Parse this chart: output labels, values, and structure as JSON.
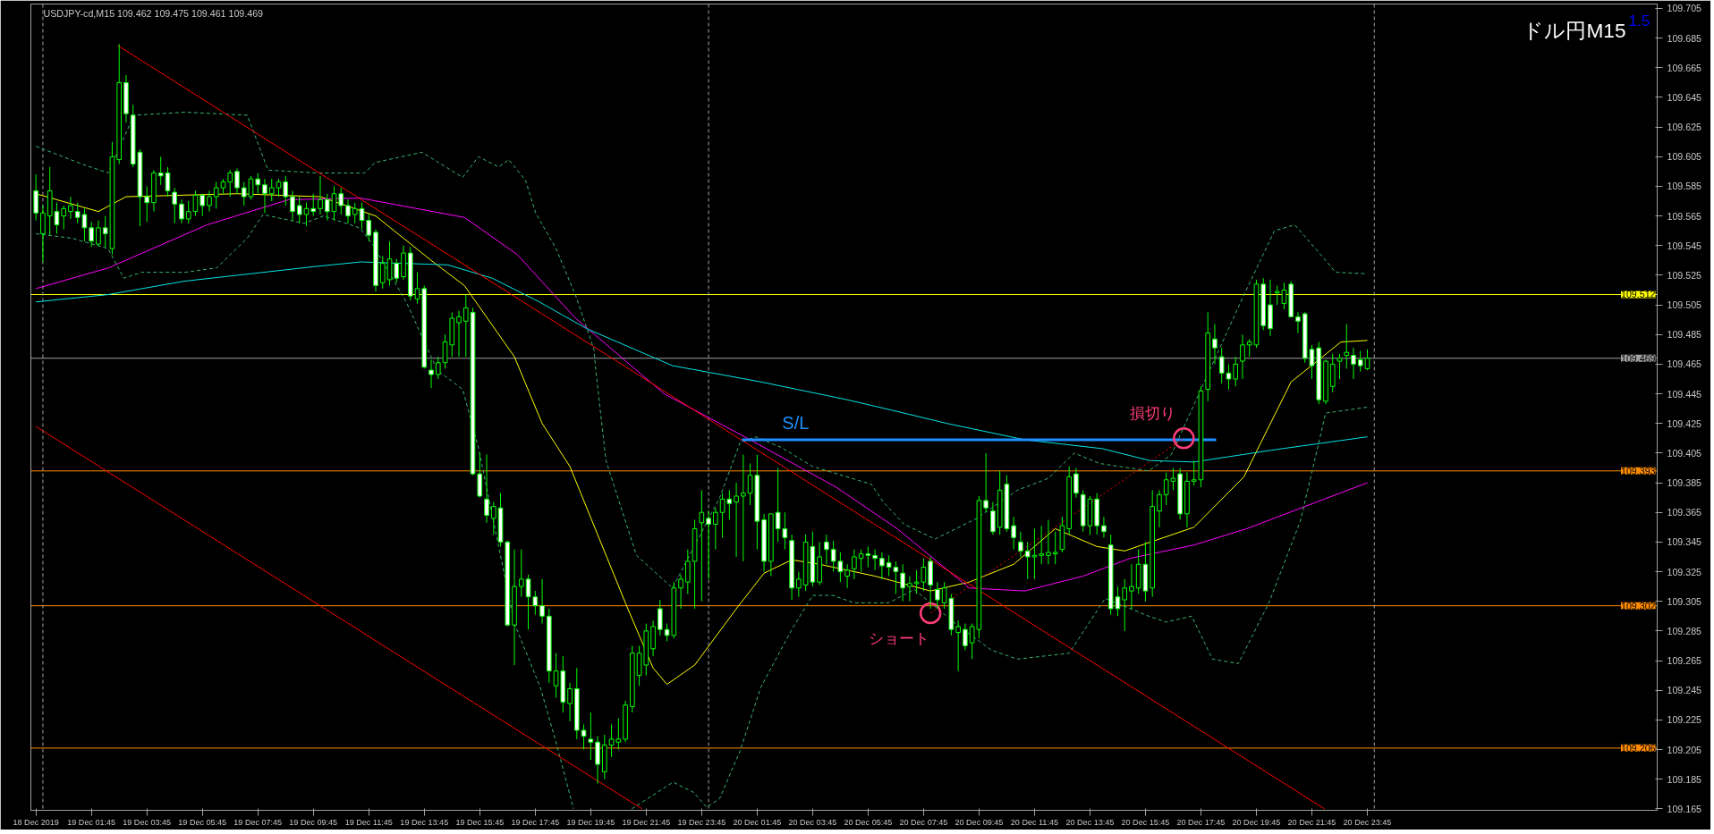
{
  "chart_data": {
    "type": "candlestick",
    "title": "ドル円M15",
    "subtitle": "USDJPY-cd,M15  109.462 109.475 109.461 109.469",
    "annotations": [
      "1.5",
      {
        "text": "損切り",
        "x": "2019-12-20T17:08",
        "y": 109.415
      },
      {
        "text": "ショート",
        "x": "2019-12-20T08:00",
        "y": 109.297
      }
    ],
    "xlim": [
      "2019-12-18T23:34",
      "2019-12-21T10:12"
    ],
    "ylim": [
      109.164,
      109.708
    ],
    "xticks": [
      {
        "value": "2019-12-18T23:45",
        "label": "18 Dec 2019"
      },
      {
        "value": "2019-12-19T01:45",
        "label": "19 Dec 01:45"
      },
      {
        "value": "2019-12-19T03:45",
        "label": "19 Dec 03:45"
      },
      {
        "value": "2019-12-19T05:45",
        "label": "19 Dec 05:45"
      },
      {
        "value": "2019-12-19T07:45",
        "label": "19 Dec 07:45"
      },
      {
        "value": "2019-12-19T09:45",
        "label": "19 Dec 09:45"
      },
      {
        "value": "2019-12-19T11:45",
        "label": "19 Dec 11:45"
      },
      {
        "value": "2019-12-19T13:45",
        "label": "19 Dec 13:45"
      },
      {
        "value": "2019-12-19T15:45",
        "label": "19 Dec 15:45"
      },
      {
        "value": "2019-12-19T17:45",
        "label": "19 Dec 17:45"
      },
      {
        "value": "2019-12-19T19:45",
        "label": "19 Dec 19:45"
      },
      {
        "value": "2019-12-19T21:45",
        "label": "19 Dec 21:45"
      },
      {
        "value": "2019-12-19T23:45",
        "label": "19 Dec 23:45"
      },
      {
        "value": "2019-12-20T01:45",
        "label": "20 Dec 01:45"
      },
      {
        "value": "2019-12-20T03:45",
        "label": "20 Dec 03:45"
      },
      {
        "value": "2019-12-20T05:45",
        "label": "20 Dec 05:45"
      },
      {
        "value": "2019-12-20T07:45",
        "label": "20 Dec 07:45"
      },
      {
        "value": "2019-12-20T09:45",
        "label": "20 Dec 09:45"
      },
      {
        "value": "2019-12-20T11:45",
        "label": "20 Dec 11:45"
      },
      {
        "value": "2019-12-20T13:45",
        "label": "20 Dec 13:45"
      },
      {
        "value": "2019-12-20T15:45",
        "label": "20 Dec 15:45"
      },
      {
        "value": "2019-12-20T17:45",
        "label": "20 Dec 17:45"
      },
      {
        "value": "2019-12-20T19:45",
        "label": "20 Dec 19:45"
      },
      {
        "value": "2019-12-20T21:45",
        "label": "20 Dec 21:45"
      },
      {
        "value": "2019-12-20T23:45",
        "label": "20 Dec 23:45"
      }
    ],
    "yticks": [
      109.165,
      109.185,
      109.205,
      109.225,
      109.245,
      109.265,
      109.285,
      109.305,
      109.325,
      109.345,
      109.365,
      109.385,
      109.405,
      109.425,
      109.445,
      109.465,
      109.485,
      109.505,
      109.525,
      109.545,
      109.565,
      109.585,
      109.605,
      109.625,
      109.645,
      109.665,
      109.685,
      109.705
    ],
    "ref_lines": [
      {
        "axis": "y",
        "value": 109.512,
        "label": "109.512",
        "color": "#ffff00"
      },
      {
        "axis": "y",
        "value": 109.469,
        "label": "109.469",
        "color": "#a0a0a0"
      },
      {
        "axis": "y",
        "value": 109.393,
        "label": "109.393",
        "color": "#ff8c00"
      },
      {
        "axis": "y",
        "value": 109.302,
        "label": "109.302",
        "color": "#ff8c00"
      },
      {
        "axis": "y",
        "value": 109.206,
        "label": "109.206",
        "color": "#ff8c00"
      },
      {
        "axis": "x",
        "value": "2019-12-19T00:00",
        "color": "#a0a0a0",
        "line_style": "dashed"
      },
      {
        "axis": "x",
        "value": "2019-12-20T00:00",
        "color": "#a0a0a0",
        "line_style": "dashed"
      },
      {
        "axis": "x",
        "value": "2019-12-21T00:00",
        "color": "#a0a0a0",
        "line_style": "dashed"
      }
    ],
    "x": [
      "2019-12-18T23:45",
      "2019-12-19T00:00",
      "2019-12-19T00:15",
      "2019-12-19T00:30",
      "2019-12-19T00:45",
      "2019-12-19T01:00",
      "2019-12-19T01:15",
      "2019-12-19T01:30",
      "2019-12-19T01:45",
      "2019-12-19T02:00",
      "2019-12-19T02:15",
      "2019-12-19T02:30",
      "2019-12-19T02:45",
      "2019-12-19T03:00",
      "2019-12-19T03:15",
      "2019-12-19T03:30",
      "2019-12-19T03:45",
      "2019-12-19T04:00",
      "2019-12-19T04:15",
      "2019-12-19T04:30",
      "2019-12-19T04:45",
      "2019-12-19T05:00",
      "2019-12-19T05:15",
      "2019-12-19T05:30",
      "2019-12-19T05:45",
      "2019-12-19T06:00",
      "2019-12-19T06:15",
      "2019-12-19T06:30",
      "2019-12-19T06:45",
      "2019-12-19T07:00",
      "2019-12-19T07:15",
      "2019-12-19T07:30",
      "2019-12-19T07:45",
      "2019-12-19T08:00",
      "2019-12-19T08:15",
      "2019-12-19T08:30",
      "2019-12-19T08:45",
      "2019-12-19T09:00",
      "2019-12-19T09:15",
      "2019-12-19T09:30",
      "2019-12-19T09:45",
      "2019-12-19T10:00",
      "2019-12-19T10:15",
      "2019-12-19T10:30",
      "2019-12-19T10:45",
      "2019-12-19T11:00",
      "2019-12-19T11:15",
      "2019-12-19T11:30",
      "2019-12-19T11:45",
      "2019-12-19T12:00",
      "2019-12-19T12:15",
      "2019-12-19T12:30",
      "2019-12-19T12:45",
      "2019-12-19T13:00",
      "2019-12-19T13:15",
      "2019-12-19T13:30",
      "2019-12-19T13:45",
      "2019-12-19T14:00",
      "2019-12-19T14:15",
      "2019-12-19T14:30",
      "2019-12-19T14:45",
      "2019-12-19T15:00",
      "2019-12-19T15:15",
      "2019-12-19T15:30",
      "2019-12-19T15:45",
      "2019-12-19T16:00",
      "2019-12-19T16:15",
      "2019-12-19T16:30",
      "2019-12-19T16:45",
      "2019-12-19T17:00",
      "2019-12-19T17:15",
      "2019-12-19T17:30",
      "2019-12-19T17:45",
      "2019-12-19T18:00",
      "2019-12-19T18:15",
      "2019-12-19T18:30",
      "2019-12-19T18:45",
      "2019-12-19T19:00",
      "2019-12-19T19:15",
      "2019-12-19T19:30",
      "2019-12-19T19:45",
      "2019-12-19T20:00",
      "2019-12-19T20:15",
      "2019-12-19T20:30",
      "2019-12-19T20:45",
      "2019-12-19T21:00",
      "2019-12-19T21:15",
      "2019-12-19T21:30",
      "2019-12-19T21:45",
      "2019-12-19T22:00",
      "2019-12-19T22:15",
      "2019-12-19T22:30",
      "2019-12-19T22:45",
      "2019-12-19T23:00",
      "2019-12-19T23:15",
      "2019-12-19T23:30",
      "2019-12-19T23:45",
      "2019-12-20T00:00",
      "2019-12-20T00:15",
      "2019-12-20T00:30",
      "2019-12-20T00:45",
      "2019-12-20T01:00",
      "2019-12-20T01:15",
      "2019-12-20T01:30",
      "2019-12-20T01:45",
      "2019-12-20T02:00",
      "2019-12-20T02:15",
      "2019-12-20T02:30",
      "2019-12-20T02:45",
      "2019-12-20T03:00",
      "2019-12-20T03:15",
      "2019-12-20T03:30",
      "2019-12-20T03:45",
      "2019-12-20T04:00",
      "2019-12-20T04:15",
      "2019-12-20T04:30",
      "2019-12-20T04:45",
      "2019-12-20T05:00",
      "2019-12-20T05:15",
      "2019-12-20T05:30",
      "2019-12-20T05:45",
      "2019-12-20T06:00",
      "2019-12-20T06:15",
      "2019-12-20T06:30",
      "2019-12-20T06:45",
      "2019-12-20T07:00",
      "2019-12-20T07:15",
      "2019-12-20T07:30",
      "2019-12-20T07:45",
      "2019-12-20T08:00",
      "2019-12-20T08:15",
      "2019-12-20T08:30",
      "2019-12-20T08:45",
      "2019-12-20T09:00",
      "2019-12-20T09:15",
      "2019-12-20T09:30",
      "2019-12-20T09:45",
      "2019-12-20T10:00",
      "2019-12-20T10:15",
      "2019-12-20T10:30",
      "2019-12-20T10:45",
      "2019-12-20T11:00",
      "2019-12-20T11:15",
      "2019-12-20T11:30",
      "2019-12-20T11:45",
      "2019-12-20T12:00",
      "2019-12-20T12:15",
      "2019-12-20T12:30",
      "2019-12-20T12:45",
      "2019-12-20T13:00",
      "2019-12-20T13:15",
      "2019-12-20T13:30",
      "2019-12-20T13:45",
      "2019-12-20T14:00",
      "2019-12-20T14:15",
      "2019-12-20T14:30",
      "2019-12-20T14:45",
      "2019-12-20T15:00",
      "2019-12-20T15:15",
      "2019-12-20T15:30",
      "2019-12-20T15:45",
      "2019-12-20T16:00",
      "2019-12-20T16:15",
      "2019-12-20T16:30",
      "2019-12-20T16:45",
      "2019-12-20T17:00",
      "2019-12-20T17:15",
      "2019-12-20T17:30",
      "2019-12-20T17:45",
      "2019-12-20T18:00",
      "2019-12-20T18:15",
      "2019-12-20T18:30",
      "2019-12-20T18:45",
      "2019-12-20T19:00",
      "2019-12-20T19:15",
      "2019-12-20T19:30",
      "2019-12-20T19:45",
      "2019-12-20T20:00",
      "2019-12-20T20:15",
      "2019-12-20T20:30",
      "2019-12-20T20:45",
      "2019-12-20T21:00",
      "2019-12-20T21:15",
      "2019-12-20T21:30",
      "2019-12-20T21:45",
      "2019-12-20T22:00",
      "2019-12-20T22:15",
      "2019-12-20T22:30",
      "2019-12-20T22:45",
      "2019-12-20T23:00",
      "2019-12-20T23:15",
      "2019-12-20T23:30",
      "2019-12-20T23:45"
    ],
    "ohlc": [
      [
        109.582,
        109.593,
        109.562,
        109.567
      ],
      [
        109.553,
        109.572,
        109.534,
        109.567
      ],
      [
        109.565,
        109.598,
        109.552,
        109.582
      ],
      [
        109.568,
        109.574,
        109.553,
        109.559
      ],
      [
        109.565,
        109.572,
        109.556,
        109.57
      ],
      [
        109.568,
        109.578,
        109.563,
        109.572
      ],
      [
        109.568,
        109.574,
        109.56,
        109.564
      ],
      [
        109.566,
        109.57,
        109.548,
        109.557
      ],
      [
        109.557,
        109.561,
        109.544,
        109.548
      ],
      [
        109.546,
        109.562,
        109.545,
        109.557
      ],
      [
        109.557,
        109.565,
        109.544,
        109.553
      ],
      [
        109.543,
        109.615,
        109.539,
        109.605
      ],
      [
        109.603,
        109.681,
        109.6,
        109.655
      ],
      [
        109.655,
        109.66,
        109.628,
        109.634
      ],
      [
        109.633,
        109.64,
        109.598,
        109.6
      ],
      [
        109.608,
        109.61,
        109.558,
        109.578
      ],
      [
        109.578,
        109.585,
        109.561,
        109.574
      ],
      [
        109.574,
        109.596,
        109.568,
        109.594
      ],
      [
        109.594,
        109.605,
        109.586,
        109.592
      ],
      [
        109.594,
        109.598,
        109.578,
        109.582
      ],
      [
        109.581,
        109.584,
        109.56,
        109.573
      ],
      [
        109.573,
        109.576,
        109.56,
        109.563
      ],
      [
        109.563,
        109.575,
        109.56,
        109.568
      ],
      [
        109.568,
        109.582,
        109.565,
        109.579
      ],
      [
        109.579,
        109.58,
        109.565,
        109.572
      ],
      [
        109.572,
        109.582,
        109.568,
        109.578
      ],
      [
        109.578,
        109.588,
        109.57,
        109.584
      ],
      [
        109.584,
        109.59,
        109.58,
        109.588
      ],
      [
        109.588,
        109.596,
        109.578,
        109.594
      ],
      [
        109.595,
        109.597,
        109.58,
        109.584
      ],
      [
        109.584,
        109.588,
        109.572,
        109.578
      ],
      [
        109.578,
        109.592,
        109.576,
        109.59
      ],
      [
        109.59,
        109.594,
        109.58,
        109.586
      ],
      [
        109.586,
        109.59,
        109.567,
        109.58
      ],
      [
        109.58,
        109.59,
        109.575,
        109.584
      ],
      [
        109.584,
        109.59,
        109.578,
        109.588
      ],
      [
        109.588,
        109.592,
        109.572,
        109.578
      ],
      [
        109.578,
        109.582,
        109.562,
        109.568
      ],
      [
        109.572,
        109.578,
        109.56,
        109.566
      ],
      [
        109.566,
        109.574,
        109.558,
        109.57
      ],
      [
        109.57,
        109.58,
        109.565,
        109.568
      ],
      [
        109.57,
        109.592,
        109.566,
        109.576
      ],
      [
        109.576,
        109.58,
        109.562,
        109.568
      ],
      [
        109.568,
        109.585,
        109.562,
        109.58
      ],
      [
        109.58,
        109.584,
        109.566,
        109.572
      ],
      [
        109.572,
        109.576,
        109.56,
        109.565
      ],
      [
        109.566,
        109.574,
        109.56,
        109.57
      ],
      [
        109.57,
        109.574,
        109.556,
        109.562
      ],
      [
        109.562,
        109.566,
        109.548,
        109.552
      ],
      [
        109.554,
        109.556,
        109.514,
        109.518
      ],
      [
        109.52,
        109.538,
        109.516,
        109.533
      ],
      [
        109.522,
        109.548,
        109.518,
        109.536
      ],
      [
        109.533,
        109.536,
        109.52,
        109.523
      ],
      [
        109.524,
        109.545,
        109.522,
        109.54
      ],
      [
        109.54,
        109.544,
        109.508,
        109.511
      ],
      [
        109.509,
        109.527,
        109.506,
        109.516
      ],
      [
        109.516,
        109.518,
        109.462,
        109.463
      ],
      [
        109.461,
        109.468,
        109.449,
        109.458
      ],
      [
        109.458,
        109.47,
        109.455,
        109.466
      ],
      [
        109.466,
        109.485,
        109.462,
        109.48
      ],
      [
        109.478,
        109.5,
        109.47,
        109.496
      ],
      [
        109.493,
        109.501,
        109.47,
        109.497
      ],
      [
        109.494,
        109.512,
        109.47,
        109.503
      ],
      [
        109.5,
        109.503,
        109.39,
        109.391
      ],
      [
        109.391,
        109.405,
        109.375,
        109.376
      ],
      [
        109.374,
        109.404,
        109.358,
        109.363
      ],
      [
        109.361,
        109.372,
        109.35,
        109.369
      ],
      [
        109.368,
        109.378,
        109.342,
        109.345
      ],
      [
        109.345,
        109.346,
        109.288,
        109.289
      ],
      [
        109.289,
        109.34,
        109.262,
        109.315
      ],
      [
        109.315,
        109.34,
        109.308,
        109.32
      ],
      [
        109.32,
        109.323,
        109.286,
        109.308
      ],
      [
        109.308,
        109.312,
        109.296,
        109.302
      ],
      [
        109.302,
        109.32,
        109.29,
        109.295
      ],
      [
        109.295,
        109.3,
        109.25,
        109.258
      ],
      [
        109.248,
        109.27,
        109.24,
        109.258
      ],
      [
        109.258,
        109.268,
        109.23,
        109.237
      ],
      [
        109.236,
        109.25,
        109.224,
        109.246
      ],
      [
        109.246,
        109.26,
        109.212,
        109.218
      ],
      [
        109.218,
        109.222,
        109.205,
        109.214
      ],
      [
        109.212,
        109.23,
        109.198,
        109.21
      ],
      [
        109.21,
        109.214,
        109.182,
        109.195
      ],
      [
        109.19,
        109.215,
        109.185,
        109.208
      ],
      [
        109.208,
        109.222,
        109.2,
        109.212
      ],
      [
        109.21,
        109.226,
        109.205,
        109.212
      ],
      [
        109.212,
        109.238,
        109.21,
        109.235
      ],
      [
        109.234,
        109.275,
        109.23,
        109.27
      ],
      [
        109.255,
        109.275,
        109.248,
        109.27
      ],
      [
        109.262,
        109.29,
        109.255,
        109.285
      ],
      [
        109.273,
        109.292,
        109.268,
        109.288
      ],
      [
        109.3,
        109.306,
        109.282,
        109.286
      ],
      [
        109.286,
        109.29,
        109.278,
        109.282
      ],
      [
        109.282,
        109.318,
        109.28,
        109.314
      ],
      [
        109.314,
        109.323,
        109.3,
        109.32
      ],
      [
        109.318,
        109.34,
        109.31,
        109.332
      ],
      [
        109.332,
        109.36,
        109.3,
        109.354
      ],
      [
        109.358,
        109.38,
        109.305,
        109.365
      ],
      [
        109.361,
        109.366,
        109.32,
        109.357
      ],
      [
        109.357,
        109.368,
        109.34,
        109.365
      ],
      [
        109.365,
        109.378,
        109.348,
        109.374
      ],
      [
        109.374,
        109.38,
        109.36,
        109.371
      ],
      [
        109.372,
        109.385,
        109.335,
        109.376
      ],
      [
        109.376,
        109.404,
        109.332,
        109.378
      ],
      [
        109.378,
        109.398,
        109.37,
        109.39
      ],
      [
        109.39,
        109.404,
        109.34,
        109.359
      ],
      [
        109.36,
        109.364,
        109.325,
        109.332
      ],
      [
        109.332,
        109.364,
        109.322,
        109.364
      ],
      [
        109.365,
        109.395,
        109.345,
        109.354
      ],
      [
        109.354,
        109.365,
        109.34,
        109.348
      ],
      [
        109.346,
        109.35,
        109.306,
        109.314
      ],
      [
        109.314,
        109.325,
        109.308,
        109.32
      ],
      [
        109.316,
        109.35,
        109.312,
        109.345
      ],
      [
        109.342,
        109.352,
        109.315,
        109.318
      ],
      [
        109.318,
        109.345,
        109.316,
        109.335
      ],
      [
        109.345,
        109.35,
        109.33,
        109.34
      ],
      [
        109.34,
        109.346,
        109.325,
        109.332
      ],
      [
        109.332,
        109.338,
        109.318,
        109.325
      ],
      [
        109.322,
        109.33,
        109.314,
        109.326
      ],
      [
        109.327,
        109.34,
        109.32,
        109.335
      ],
      [
        109.334,
        109.34,
        109.325,
        109.337
      ],
      [
        109.337,
        109.342,
        109.328,
        109.336
      ],
      [
        109.336,
        109.34,
        109.326,
        109.334
      ],
      [
        109.334,
        109.338,
        109.32,
        109.329
      ],
      [
        109.331,
        109.336,
        109.322,
        109.328
      ],
      [
        109.328,
        109.332,
        109.31,
        109.325
      ],
      [
        109.324,
        109.33,
        109.305,
        109.314
      ],
      [
        109.315,
        109.322,
        109.305,
        109.317
      ],
      [
        109.317,
        109.326,
        109.31,
        109.318
      ],
      [
        109.318,
        109.334,
        109.312,
        109.328
      ],
      [
        109.332,
        109.335,
        109.3,
        109.316
      ],
      [
        109.313,
        109.318,
        109.3,
        109.306
      ],
      [
        109.304,
        109.318,
        109.3,
        109.314
      ],
      [
        109.307,
        109.31,
        109.282,
        109.286
      ],
      [
        109.284,
        109.292,
        109.258,
        109.288
      ],
      [
        109.286,
        109.29,
        109.272,
        109.275
      ],
      [
        109.277,
        109.29,
        109.266,
        109.288
      ],
      [
        109.286,
        109.376,
        109.28,
        109.373
      ],
      [
        109.373,
        109.405,
        109.365,
        109.368
      ],
      [
        109.366,
        109.372,
        109.35,
        109.352
      ],
      [
        109.355,
        109.393,
        109.35,
        109.38
      ],
      [
        109.384,
        109.39,
        109.352,
        109.354
      ],
      [
        109.356,
        109.362,
        109.34,
        109.348
      ],
      [
        109.345,
        109.352,
        109.335,
        109.339
      ],
      [
        109.339,
        109.345,
        109.32,
        109.335
      ],
      [
        109.335,
        109.354,
        109.32,
        109.336
      ],
      [
        109.336,
        109.356,
        109.33,
        109.337
      ],
      [
        109.336,
        109.36,
        109.33,
        109.338
      ],
      [
        109.337,
        109.352,
        109.33,
        109.338
      ],
      [
        109.34,
        109.362,
        109.338,
        109.356
      ],
      [
        109.354,
        109.396,
        109.35,
        109.389
      ],
      [
        109.391,
        109.395,
        109.375,
        109.378
      ],
      [
        109.377,
        109.38,
        109.352,
        109.356
      ],
      [
        109.356,
        109.376,
        109.35,
        109.374
      ],
      [
        109.374,
        109.378,
        109.35,
        109.356
      ],
      [
        109.356,
        109.362,
        109.348,
        109.352
      ],
      [
        109.343,
        109.35,
        109.296,
        109.3
      ],
      [
        109.308,
        109.315,
        109.295,
        109.3
      ],
      [
        109.306,
        109.32,
        109.285,
        109.314
      ],
      [
        109.312,
        109.33,
        109.3,
        109.315
      ],
      [
        109.314,
        109.34,
        109.31,
        109.33
      ],
      [
        109.33,
        109.345,
        109.305,
        109.312
      ],
      [
        109.314,
        109.38,
        109.308,
        109.369
      ],
      [
        109.366,
        109.38,
        109.355,
        109.377
      ],
      [
        109.377,
        109.392,
        109.37,
        109.387
      ],
      [
        109.386,
        109.395,
        109.38,
        109.388
      ],
      [
        109.391,
        109.395,
        109.36,
        109.364
      ],
      [
        109.364,
        109.392,
        109.355,
        109.386
      ],
      [
        109.386,
        109.4,
        109.383,
        109.387
      ],
      [
        109.387,
        109.45,
        109.382,
        109.447
      ],
      [
        109.448,
        109.5,
        109.44,
        109.486
      ],
      [
        109.482,
        109.492,
        109.465,
        109.476
      ],
      [
        109.47,
        109.476,
        109.452,
        109.459
      ],
      [
        109.459,
        109.465,
        109.448,
        109.455
      ],
      [
        109.455,
        109.47,
        109.45,
        109.465
      ],
      [
        109.467,
        109.485,
        109.455,
        109.478
      ],
      [
        109.478,
        109.482,
        109.47,
        109.48
      ],
      [
        109.478,
        109.522,
        109.476,
        109.519
      ],
      [
        109.519,
        109.523,
        109.488,
        109.491
      ],
      [
        109.505,
        109.522,
        109.484,
        109.489
      ],
      [
        109.513,
        109.518,
        109.505,
        109.514
      ],
      [
        109.506,
        109.52,
        109.502,
        109.515
      ],
      [
        109.519,
        109.521,
        109.497,
        109.497
      ],
      [
        109.497,
        109.5,
        109.486,
        109.494
      ],
      [
        109.499,
        109.5,
        109.466,
        109.469
      ],
      [
        109.475,
        109.478,
        109.455,
        109.464
      ],
      [
        109.476,
        109.48,
        109.438,
        109.441
      ],
      [
        109.44,
        109.468,
        109.438,
        109.467
      ],
      [
        109.45,
        109.472,
        109.446,
        109.465
      ],
      [
        109.467,
        109.472,
        109.455,
        109.469
      ],
      [
        109.471,
        109.492,
        109.462,
        109.473
      ],
      [
        109.471,
        109.476,
        109.455,
        109.465
      ],
      [
        109.468,
        109.474,
        109.46,
        109.464
      ],
      [
        109.462,
        109.475,
        109.461,
        109.469
      ]
    ],
    "series": [
      {
        "type": "line",
        "color": "#ffff00",
        "x": [
          "2019-12-18T23:45",
          "2019-12-19T02:00",
          "2019-12-19T03:00",
          "2019-12-19T07:00",
          "2019-12-19T10:00",
          "2019-12-19T12:00",
          "2019-12-19T14:00",
          "2019-12-19T15:12",
          "2019-12-19T17:00",
          "2019-12-19T18:00",
          "2019-12-19T19:00",
          "2019-12-19T21:00",
          "2019-12-19T22:00",
          "2019-12-19T22:30",
          "2019-12-19T23:30",
          "2019-12-20T01:00",
          "2019-12-20T02:00",
          "2019-12-20T03:00",
          "2019-12-20T04:00",
          "2019-12-20T06:00",
          "2019-12-20T08:00",
          "2019-12-20T09:24",
          "2019-12-20T11:00",
          "2019-12-20T12:30",
          "2019-12-20T14:00",
          "2019-12-20T15:00",
          "2019-12-20T17:30",
          "2019-12-20T19:18",
          "2019-12-20T21:00",
          "2019-12-20T22:48",
          "2019-12-20T23:45"
        ],
        "values": [
          109.58,
          109.568,
          109.578,
          109.58,
          109.578,
          109.565,
          109.535,
          109.518,
          109.47,
          109.425,
          109.396,
          109.304,
          109.26,
          109.249,
          109.262,
          109.3,
          109.324,
          109.333,
          109.33,
          109.322,
          109.312,
          109.318,
          109.33,
          109.354,
          109.342,
          109.339,
          109.355,
          109.389,
          109.453,
          109.48,
          109.481
        ]
      },
      {
        "type": "line",
        "color": "#ff00ff",
        "x": [
          "2019-12-18T23:45",
          "2019-12-19T02:22",
          "2019-12-19T05:55",
          "2019-12-19T08:52",
          "2019-12-19T11:28",
          "2019-12-19T15:12",
          "2019-12-19T17:06",
          "2019-12-19T19:12",
          "2019-12-19T22:24",
          "2019-12-20T01:30",
          "2019-12-20T04:36",
          "2019-12-20T06:48",
          "2019-12-20T09:24",
          "2019-12-20T11:24",
          "2019-12-20T13:30",
          "2019-12-20T15:12",
          "2019-12-20T17:30",
          "2019-12-20T19:24",
          "2019-12-20T23:45"
        ],
        "values": [
          109.516,
          109.53,
          109.559,
          109.576,
          109.577,
          109.564,
          109.539,
          109.496,
          109.445,
          109.414,
          109.382,
          109.354,
          109.314,
          109.312,
          109.322,
          109.334,
          109.343,
          109.354,
          109.385
        ]
      },
      {
        "type": "line",
        "color": "#00e5e5",
        "x": [
          "2019-12-18T23:45",
          "2019-12-19T02:22",
          "2019-12-19T05:06",
          "2019-12-19T09:52",
          "2019-12-19T11:28",
          "2019-12-19T14:36",
          "2019-12-19T16:12",
          "2019-12-19T17:54",
          "2019-12-19T19:36",
          "2019-12-19T22:42",
          "2019-12-20T01:54",
          "2019-12-20T05:00",
          "2019-12-20T06:36",
          "2019-12-20T08:36",
          "2019-12-20T11:24",
          "2019-12-20T14:12",
          "2019-12-20T15:54",
          "2019-12-20T17:30",
          "2019-12-20T20:18",
          "2019-12-20T23:45"
        ],
        "values": [
          109.507,
          109.512,
          109.521,
          109.531,
          109.534,
          109.532,
          109.523,
          109.507,
          109.489,
          109.464,
          109.453,
          109.441,
          109.434,
          109.425,
          109.414,
          109.408,
          109.4,
          109.399,
          109.407,
          109.416
        ]
      },
      {
        "type": "line",
        "color": "#3cb371",
        "line_style": "dashed",
        "x": [
          "2019-12-18T23:45",
          "2019-12-19T01:25",
          "2019-12-19T02:21",
          "2019-12-19T03:17",
          "2019-12-19T05:08",
          "2019-12-19T07:22",
          "2019-12-19T08:07",
          "2019-12-19T09:52",
          "2019-12-19T11:36",
          "2019-12-19T11:58",
          "2019-12-19T13:40",
          "2019-12-19T15:08",
          "2019-12-19T15:42",
          "2019-12-19T16:26",
          "2019-12-19T16:48",
          "2019-12-19T17:24",
          "2019-12-19T17:46",
          "2019-12-19T18:30",
          "2019-12-19T19:14",
          "2019-12-19T19:52",
          "2019-12-19T19:56",
          "2019-12-19T20:18",
          "2019-12-19T21:24",
          "2019-12-19T22:42",
          "2019-12-20T00:24",
          "2019-12-20T01:08",
          "2019-12-20T01:42",
          "2019-12-20T02:36",
          "2019-12-20T03:45",
          "2019-12-20T05:52",
          "2019-12-20T06:18",
          "2019-12-20T07:03",
          "2019-12-20T08:10",
          "2019-12-20T09:40",
          "2019-12-20T11:08",
          "2019-12-20T12:15",
          "2019-12-20T13:11",
          "2019-12-20T14:06",
          "2019-12-20T15:52",
          "2019-12-20T16:41",
          "2019-12-20T17:48",
          "2019-12-20T19:17",
          "2019-12-20T20:24",
          "2019-12-20T21:08",
          "2019-12-20T22:15",
          "2019-12-20T22:36",
          "2019-12-20T23:45"
        ],
        "values": [
          109.612,
          109.6,
          109.594,
          109.633,
          109.635,
          109.633,
          109.596,
          109.594,
          109.594,
          109.601,
          109.608,
          109.591,
          109.605,
          109.598,
          109.603,
          109.589,
          109.567,
          109.543,
          109.51,
          109.475,
          109.461,
          109.4,
          109.336,
          109.314,
          109.375,
          109.412,
          109.416,
          109.409,
          109.396,
          109.384,
          109.372,
          109.357,
          109.347,
          109.361,
          109.38,
          109.388,
          109.405,
          109.398,
          109.393,
          109.404,
          109.45,
          109.511,
          109.555,
          109.559,
          109.535,
          109.527,
          109.526
        ]
      },
      {
        "type": "line",
        "color": "#3cb371",
        "line_style": "dashed",
        "x": [
          "2019-12-18T23:45",
          "2019-12-19T01:03",
          "2019-12-19T02:21",
          "2019-12-19T02:55",
          "2019-12-19T03:34",
          "2019-12-19T05:08",
          "2019-12-19T06:16",
          "2019-12-19T07:22",
          "2019-12-19T07:56",
          "2019-12-19T09:25",
          "2019-12-19T10:07",
          "2019-12-19T11:25",
          "2019-12-19T11:53",
          "2019-12-19T13:06",
          "2019-12-19T14:13",
          "2019-12-19T15:08",
          "2019-12-19T15:42",
          "2019-12-19T17:00",
          "2019-12-19T17:56",
          "2019-12-19T18:29",
          "2019-12-19T19:08",
          "2019-12-19T20:12",
          "2019-12-19T21:14",
          "2019-12-19T22:43",
          "2019-12-19T23:28",
          "2019-12-19T23:56",
          "2019-12-20T00:24",
          "2019-12-20T01:08",
          "2019-12-20T01:53",
          "2019-12-20T03:00",
          "2019-12-20T03:45",
          "2019-12-20T04:29",
          "2019-12-20T05:14",
          "2019-12-20T06:30",
          "2019-12-20T07:25",
          "2019-12-20T08:54",
          "2019-12-20T10:12",
          "2019-12-20T11:08",
          "2019-12-20T13:00",
          "2019-12-20T14:18",
          "2019-12-20T15:52",
          "2019-12-20T16:30",
          "2019-12-20T17:25",
          "2019-12-20T18:10",
          "2019-12-20T19:06",
          "2019-12-20T20:12",
          "2019-12-20T21:20",
          "2019-12-20T22:15",
          "2019-12-20T23:45"
        ],
        "values": [
          109.553,
          109.55,
          109.543,
          109.523,
          109.527,
          109.527,
          109.53,
          109.55,
          109.566,
          109.56,
          109.565,
          109.557,
          109.546,
          109.507,
          109.461,
          109.448,
          109.409,
          109.29,
          109.247,
          109.211,
          109.165,
          null,
          109.165,
          109.183,
          109.176,
          109.166,
          109.172,
          109.204,
          109.247,
          109.286,
          109.309,
          109.309,
          109.304,
          109.304,
          109.313,
          109.29,
          109.272,
          109.266,
          109.27,
          109.307,
          109.295,
          109.291,
          109.295,
          109.266,
          109.263,
          109.304,
          109.359,
          109.432,
          109.436
        ]
      },
      {
        "type": "line",
        "color": "#ff0000",
        "x": [
          "2019-12-19T02:42",
          "2019-12-20T22:12"
        ],
        "values": [
          109.68,
          109.165
        ]
      },
      {
        "type": "line",
        "color": "#ff0000",
        "x": [
          "2019-12-18T23:45",
          "2019-12-19T21:36"
        ],
        "values": [
          109.423,
          109.165
        ]
      },
      {
        "type": "line",
        "name": "S/L",
        "color": "#1e90ff",
        "x": [
          "2019-12-20T01:12",
          "2019-12-20T18:18"
        ],
        "values": [
          109.414,
          109.414
        ]
      },
      {
        "type": "line",
        "color": "#ff0000",
        "line_style": "dotted",
        "x": [
          "2019-12-20T08:00",
          "2019-12-20T17:08"
        ],
        "values": [
          109.297,
          109.415
        ]
      },
      {
        "type": "scatter",
        "color": "#ff3c78",
        "marker": "circle",
        "x": [
          "2019-12-20T08:00",
          "2019-12-20T17:08"
        ],
        "values": [
          109.297,
          109.415
        ]
      }
    ]
  }
}
